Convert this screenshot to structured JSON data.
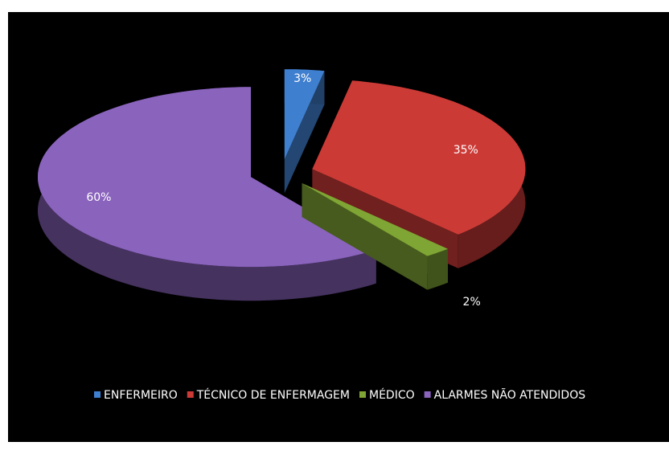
{
  "chart_data": {
    "type": "pie",
    "categories": [
      "ENFERMEIRO",
      "TÉCNICO DE ENFERMAGEM",
      "MÉDICO",
      "ALARMES NÃO ATENDIDOS"
    ],
    "values": [
      3,
      35,
      2,
      60
    ],
    "value_labels": [
      "3%",
      "35%",
      "2%",
      "60%"
    ],
    "colors": [
      "#3f7fcf",
      "#cc3a36",
      "#7fa534",
      "#8a63bd"
    ],
    "legend": "bottom"
  }
}
